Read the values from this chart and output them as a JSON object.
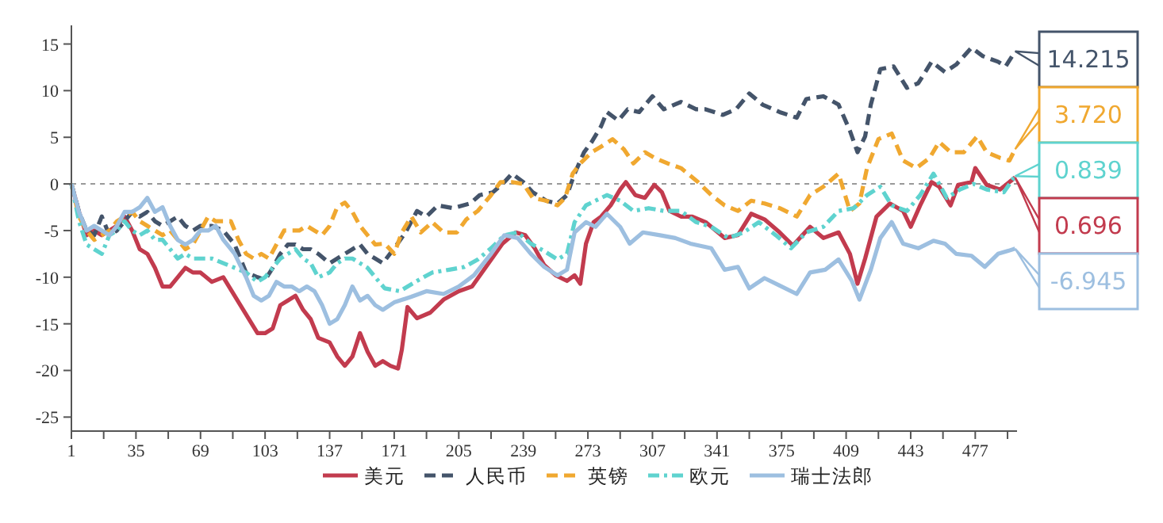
{
  "chart_data": {
    "type": "line",
    "xlim": [
      1,
      499
    ],
    "xticks": [
      1,
      {
        "value": 18,
        "label": null
      },
      35,
      {
        "value": 52,
        "label": null
      },
      69,
      {
        "value": 86,
        "label": null
      },
      103,
      {
        "value": 120,
        "label": null
      },
      137,
      {
        "value": 154,
        "label": null
      },
      171,
      {
        "value": 188,
        "label": null
      },
      205,
      {
        "value": 222,
        "label": null
      },
      239,
      {
        "value": 256,
        "label": null
      },
      273,
      {
        "value": 290,
        "label": null
      },
      307,
      {
        "value": 324,
        "label": null
      },
      341,
      {
        "value": 358,
        "label": null
      },
      375,
      {
        "value": 392,
        "label": null
      },
      409,
      {
        "value": 426,
        "label": null
      },
      443,
      {
        "value": 460,
        "label": null
      },
      477,
      {
        "value": 494,
        "label": null
      }
    ],
    "ylim": [
      -26.5,
      17
    ],
    "yticks": [
      -25,
      -20,
      -15,
      -10,
      -5,
      0,
      5,
      10,
      15
    ],
    "grid": false,
    "legend": "bottom",
    "ref_lines": [
      {
        "axis": "y",
        "value": 0,
        "color": "#999999",
        "line_style": "dashed"
      }
    ],
    "annotations": [
      "14.215",
      "3.720",
      "0.839",
      "0.696",
      "-6.945"
    ],
    "series": [
      {
        "name": "美元",
        "color": "#c23b4e",
        "line_style": "solid",
        "x": [
          1,
          5,
          9,
          13,
          17,
          21,
          25,
          29,
          33,
          37,
          41,
          45,
          49,
          53,
          57,
          61,
          65,
          69,
          75,
          81,
          87,
          93,
          99,
          103,
          107,
          111,
          115,
          119,
          123,
          127,
          131,
          137,
          141,
          145,
          149,
          153,
          157,
          161,
          165,
          169,
          173,
          175,
          178,
          183,
          190,
          197,
          205,
          212,
          220,
          228,
          235,
          240,
          245,
          250,
          256,
          262,
          266,
          269,
          272,
          276,
          280,
          285,
          290,
          293,
          298,
          303,
          308,
          312,
          316,
          322,
          328,
          335,
          345,
          352,
          359,
          366,
          374,
          381,
          390,
          397,
          405,
          411,
          415,
          419,
          425,
          432,
          439,
          443,
          448,
          454,
          458,
          464,
          468,
          475,
          477,
          483,
          490,
          498
        ],
        "values": [
          0,
          -3,
          -5.5,
          -5,
          -5.5,
          -5,
          -4.5,
          -3.5,
          -5,
          -7,
          -7.5,
          -9,
          -11,
          -11,
          -10,
          -9,
          -9.5,
          -9.5,
          -10.5,
          -10,
          -12,
          -14,
          -16,
          -16,
          -15.5,
          -13,
          -12.5,
          -12,
          -13.5,
          -14.5,
          -16.5,
          -17,
          -18.5,
          -19.5,
          -18.5,
          -16,
          -18,
          -19.5,
          -19,
          -19.5,
          -19.8,
          -17.8,
          -13.2,
          -14.4,
          -13.8,
          -12.4,
          -11.5,
          -11,
          -8.7,
          -6.4,
          -5.2,
          -5.5,
          -6.9,
          -8.7,
          -9.8,
          -10.4,
          -9.8,
          -10.7,
          -6.4,
          -4.1,
          -3.5,
          -2.3,
          -0.6,
          0.2,
          -1.2,
          -1.5,
          -0.1,
          -0.9,
          -2.9,
          -3.5,
          -3.5,
          -4.1,
          -5.8,
          -5.5,
          -3.2,
          -3.8,
          -5.2,
          -6.6,
          -4.6,
          -5.8,
          -5.2,
          -7.5,
          -10.7,
          -8,
          -3.5,
          -2.1,
          -2.9,
          -4.6,
          -2.3,
          0.2,
          -0.3,
          -2.3,
          -0.1,
          0.2,
          1.7,
          -0.1,
          -0.6,
          0.696
        ]
      },
      {
        "name": "人民币",
        "color": "#44546a",
        "line_style": "dashed",
        "x": [
          1,
          5,
          9,
          13,
          17,
          21,
          25,
          29,
          33,
          37,
          41,
          45,
          49,
          53,
          57,
          61,
          65,
          69,
          75,
          81,
          87,
          93,
          99,
          103,
          107,
          111,
          115,
          119,
          123,
          127,
          131,
          137,
          141,
          145,
          149,
          153,
          157,
          161,
          165,
          171,
          177,
          183,
          188,
          194,
          202,
          211,
          216,
          223,
          229,
          233,
          239,
          244,
          251,
          257,
          262,
          266,
          271,
          275,
          280,
          283,
          289,
          294,
          300,
          307,
          313,
          322,
          330,
          335,
          344,
          351,
          358,
          365,
          374,
          383,
          388,
          397,
          405,
          411,
          415,
          419,
          422,
          427,
          434,
          441,
          447,
          454,
          461,
          467,
          475,
          481,
          489,
          493,
          498
        ],
        "values": [
          0,
          -3,
          -5,
          -5.5,
          -3.5,
          -5.5,
          -5,
          -4,
          -3,
          -3.5,
          -3,
          -4,
          -4.5,
          -4,
          -3.5,
          -4.5,
          -5,
          -4.5,
          -4.5,
          -5,
          -6.5,
          -9.5,
          -10,
          -10.3,
          -9,
          -7.5,
          -6.5,
          -6.5,
          -7,
          -7,
          -7.5,
          -8.5,
          -8,
          -7.5,
          -7,
          -6.5,
          -7.5,
          -8,
          -8.5,
          -6.9,
          -5.2,
          -2.9,
          -3.5,
          -2.3,
          -2.6,
          -2.1,
          -1.2,
          -0.9,
          0.2,
          1.1,
          0.2,
          -0.9,
          -1.8,
          -2.1,
          -1.2,
          1.1,
          3.4,
          4.5,
          6.2,
          7.7,
          6.8,
          8,
          7.7,
          9.4,
          8,
          8.8,
          8,
          8,
          7.4,
          8,
          9.7,
          8.5,
          7.7,
          7.1,
          9.1,
          9.4,
          8.5,
          5.7,
          3.4,
          5.1,
          8.5,
          12.3,
          12.6,
          10.3,
          10.8,
          13.1,
          12,
          12.8,
          14.6,
          13.7,
          13.1,
          12.6,
          14.215
        ]
      },
      {
        "name": "英镑",
        "color": "#f0a830",
        "line_style": "dashed",
        "x": [
          1,
          5,
          9,
          13,
          17,
          21,
          25,
          29,
          33,
          37,
          41,
          45,
          49,
          53,
          57,
          61,
          65,
          69,
          73,
          77,
          81,
          85,
          89,
          93,
          97,
          101,
          105,
          109,
          113,
          117,
          121,
          125,
          129,
          133,
          137,
          141,
          145,
          149,
          153,
          157,
          161,
          166,
          171,
          175,
          180,
          185,
          191,
          197,
          204,
          209,
          215,
          222,
          227,
          233,
          239,
          244,
          251,
          257,
          261,
          265,
          269,
          275,
          280,
          286,
          292,
          297,
          303,
          308,
          315,
          322,
          331,
          338,
          345,
          352,
          359,
          366,
          374,
          383,
          390,
          397,
          405,
          411,
          416,
          420,
          426,
          433,
          439,
          446,
          453,
          458,
          464,
          471,
          478,
          483,
          490,
          495,
          498
        ],
        "values": [
          0,
          -3.5,
          -5,
          -6,
          -5.5,
          -5,
          -4,
          -3.5,
          -3,
          -4,
          -4.5,
          -5,
          -5.5,
          -5,
          -6,
          -7,
          -6.5,
          -5,
          -3.5,
          -4,
          -4,
          -4,
          -6,
          -7.5,
          -8,
          -7.5,
          -8,
          -6.5,
          -5,
          -5,
          -5,
          -4.5,
          -5,
          -5.5,
          -4.5,
          -2.5,
          -2,
          -3,
          -4.5,
          -5.5,
          -6.5,
          -6.4,
          -7.5,
          -5.2,
          -3.5,
          -5.2,
          -4.1,
          -5.2,
          -5.2,
          -3.8,
          -2.9,
          -1.2,
          0.2,
          0.2,
          0,
          -1.5,
          -1.8,
          -2.3,
          -1.5,
          1.1,
          2.2,
          3.4,
          4,
          4.8,
          3.7,
          2.2,
          3.4,
          2.8,
          2.2,
          1.7,
          0.2,
          -1.2,
          -2.3,
          -2.9,
          -1.8,
          -2.1,
          -2.6,
          -3.5,
          -1.2,
          -0.3,
          1.1,
          -2.9,
          -2.1,
          1.7,
          4.8,
          5.4,
          2.5,
          1.7,
          2.8,
          4.5,
          3.4,
          3.4,
          5.1,
          3.4,
          2.8,
          2.5,
          3.72
        ]
      },
      {
        "name": "欧元",
        "color": "#5fd3cf",
        "line_style": "dotted",
        "x": [
          1,
          5,
          9,
          13,
          17,
          21,
          25,
          29,
          33,
          37,
          41,
          45,
          49,
          53,
          57,
          61,
          65,
          69,
          75,
          81,
          87,
          93,
          99,
          103,
          107,
          111,
          115,
          119,
          123,
          127,
          131,
          137,
          141,
          145,
          149,
          153,
          157,
          161,
          166,
          174,
          183,
          191,
          200,
          208,
          215,
          222,
          229,
          236,
          243,
          250,
          257,
          262,
          266,
          272,
          277,
          283,
          290,
          297,
          305,
          313,
          322,
          330,
          338,
          347,
          355,
          363,
          372,
          380,
          388,
          397,
          405,
          413,
          420,
          427,
          433,
          441,
          448,
          455,
          462,
          469,
          476,
          483,
          492,
          498
        ],
        "values": [
          0,
          -4,
          -6.5,
          -7,
          -7.5,
          -5.5,
          -5,
          -4,
          -5,
          -5.5,
          -5,
          -6,
          -6,
          -7,
          -8,
          -7.5,
          -8,
          -8,
          -8,
          -8.5,
          -9,
          -9.5,
          -10.5,
          -10,
          -9,
          -8,
          -7.5,
          -7,
          -8,
          -8.5,
          -10,
          -9.5,
          -8.5,
          -8,
          -8,
          -8.5,
          -9,
          -10,
          -11.2,
          -11.5,
          -10.4,
          -9.5,
          -9.2,
          -8.9,
          -8.1,
          -6.9,
          -5.5,
          -5.2,
          -6.4,
          -7.2,
          -8.1,
          -7.5,
          -4.1,
          -2.3,
          -1.8,
          -1.2,
          -1.8,
          -2.9,
          -2.6,
          -2.9,
          -2.9,
          -4.1,
          -4.6,
          -5.8,
          -5.2,
          -4.1,
          -5.5,
          -6.9,
          -5.2,
          -4.6,
          -2.9,
          -2.6,
          -1.2,
          -0.3,
          -2.3,
          -2.9,
          -1.2,
          1.1,
          -1.5,
          -0.6,
          0,
          -0.6,
          -0.9,
          0.839
        ]
      },
      {
        "name": "瑞士法郎",
        "color": "#9dbfe0",
        "line_style": "solid",
        "x": [
          1,
          5,
          9,
          13,
          17,
          21,
          25,
          29,
          33,
          37,
          41,
          45,
          49,
          53,
          57,
          61,
          65,
          69,
          73,
          77,
          81,
          87,
          93,
          97,
          101,
          105,
          109,
          113,
          117,
          121,
          125,
          129,
          133,
          137,
          141,
          145,
          149,
          153,
          157,
          161,
          165,
          171,
          180,
          188,
          197,
          205,
          213,
          222,
          229,
          236,
          243,
          250,
          257,
          262,
          266,
          272,
          277,
          283,
          290,
          295,
          302,
          311,
          319,
          327,
          338,
          345,
          352,
          358,
          366,
          374,
          383,
          390,
          398,
          405,
          412,
          416,
          422,
          427,
          433,
          439,
          447,
          455,
          461,
          467,
          475,
          482,
          489,
          494,
          498
        ],
        "values": [
          0,
          -3,
          -5,
          -4.5,
          -5,
          -5.5,
          -4.5,
          -3,
          -3,
          -2.5,
          -1.5,
          -3,
          -2.5,
          -4.5,
          -6,
          -6.5,
          -6,
          -5,
          -5,
          -4.5,
          -6,
          -7.5,
          -10,
          -12,
          -12.5,
          -12,
          -10.5,
          -11,
          -11,
          -11.5,
          -11,
          -11.5,
          -13,
          -15,
          -14.5,
          -13,
          -11,
          -12.5,
          -12,
          -13,
          -13.5,
          -12.7,
          -12.1,
          -11.5,
          -11.8,
          -11,
          -9.8,
          -7.5,
          -5.5,
          -5.8,
          -7.5,
          -8.9,
          -9.8,
          -9.2,
          -5.2,
          -4.1,
          -4.6,
          -3.2,
          -4.6,
          -6.4,
          -5.2,
          -5.5,
          -5.8,
          -6.4,
          -6.9,
          -9.2,
          -8.9,
          -11.2,
          -10.1,
          -10.9,
          -11.8,
          -9.5,
          -9.2,
          -8.1,
          -10.4,
          -12.4,
          -9.2,
          -5.8,
          -4.1,
          -6.4,
          -6.9,
          -6.1,
          -6.4,
          -7.5,
          -7.7,
          -8.9,
          -7.5,
          -7.2,
          -6.945
        ]
      }
    ]
  }
}
